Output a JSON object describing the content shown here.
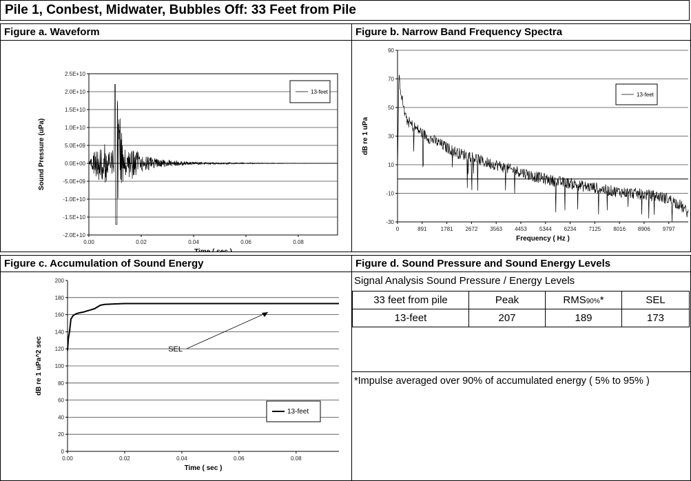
{
  "page": {
    "title": "Pile 1, Conbest, Midwater, Bubbles Off: 33 Feet from Pile"
  },
  "figures": {
    "a": {
      "title": "Figure a. Waveform"
    },
    "b": {
      "title": "Figure b. Narrow Band Frequency Spectra"
    },
    "c": {
      "title": "Figure c. Accumulation of Sound Energy"
    },
    "d": {
      "title": "Figure d. Sound Pressure and Sound Energy Levels"
    }
  },
  "chart_data": [
    {
      "id": "a",
      "type": "line",
      "xlabel": "Time ( sec )",
      "ylabel": "Sound Pressure (uPa)",
      "xlim": [
        0,
        0.095
      ],
      "ylim": [
        -20000000000.0,
        25000000000.0
      ],
      "x_ticks": [
        "0.00",
        "0.02",
        "0.04",
        "0.06",
        "0.08"
      ],
      "y_ticks": [
        "2.5E+10",
        "2.0E+10",
        "1.5E+10",
        "1.0E+10",
        "5.0E+09",
        "0.0E+00",
        "-5.0E+09",
        "-1.0E+10",
        "-1.5E+10",
        "-2.0E+10"
      ],
      "grid": true,
      "legend_position": "top-right",
      "series": [
        {
          "name": "13-feet",
          "color": "#000000",
          "x": [
            0.0,
            0.002,
            0.004,
            0.006,
            0.008,
            0.0095,
            0.0105,
            0.0115,
            0.013,
            0.015,
            0.017,
            0.02,
            0.025,
            0.03,
            0.035,
            0.04,
            0.05,
            0.06,
            0.07,
            0.08,
            0.09,
            0.095
          ],
          "y": [
            0.0,
            4000000000.0,
            -5000000000.0,
            6000000000.0,
            3000000000.0,
            -4000000000.0,
            22000000000.0,
            -17000000000.0,
            5000000000.0,
            -4000000000.0,
            4500000000.0,
            2500000000.0,
            1500000000.0,
            1000000000.0,
            600000000.0,
            400000000.0,
            250000000.0,
            150000000.0,
            100000000.0,
            50000000.0,
            30000000.0,
            0.0
          ]
        }
      ]
    },
    {
      "id": "b",
      "type": "line",
      "xlabel": "Frequency ( Hz )",
      "ylabel": "dB re 1 uPa",
      "xlim": [
        0,
        10500
      ],
      "ylim": [
        -30,
        90
      ],
      "x_ticks": [
        "0",
        "891",
        "1781",
        "2672",
        "3563",
        "4453",
        "5344",
        "6234",
        "7125",
        "8016",
        "8906",
        "9797"
      ],
      "y_ticks": [
        "90",
        "70",
        "50",
        "30",
        "10",
        "-10",
        "-30"
      ],
      "grid": true,
      "legend_position": "top-right",
      "series": [
        {
          "name": "13-feet",
          "color": "#000000",
          "x": [
            0,
            50,
            150,
            300,
            500,
            891,
            1200,
            1500,
            1781,
            2200,
            2672,
            3100,
            3563,
            4000,
            4453,
            4900,
            5344,
            5800,
            6234,
            6700,
            7125,
            7600,
            8016,
            8500,
            8906,
            9400,
            9797,
            10200,
            10500
          ],
          "y": [
            2,
            72,
            58,
            42,
            38,
            32,
            28,
            25,
            22,
            18,
            16,
            12,
            10,
            7,
            5,
            2,
            0,
            -2,
            -3,
            -5,
            -6,
            -8,
            -9,
            -10,
            -11,
            -12,
            -14,
            -18,
            -24
          ]
        }
      ]
    },
    {
      "id": "c",
      "type": "line",
      "xlabel": "Time ( sec )",
      "ylabel": "dB re 1 uPa^2 sec",
      "xlim": [
        0,
        0.095
      ],
      "ylim": [
        0,
        200
      ],
      "x_ticks": [
        "0.00",
        "0.02",
        "0.04",
        "0.06",
        "0.08"
      ],
      "y_ticks": [
        "200",
        "180",
        "160",
        "140",
        "120",
        "100",
        "80",
        "60",
        "40",
        "20",
        "0"
      ],
      "grid": true,
      "legend_position": "bottom-right",
      "annotation": "SEL",
      "series": [
        {
          "name": "13-feet",
          "color": "#000000",
          "x": [
            0.0,
            0.0003,
            0.0007,
            0.0012,
            0.002,
            0.003,
            0.004,
            0.0055,
            0.0075,
            0.0095,
            0.0105,
            0.0115,
            0.013,
            0.016,
            0.02,
            0.03,
            0.04,
            0.06,
            0.08,
            0.095
          ],
          "y": [
            118,
            132,
            140,
            155,
            159,
            161,
            162,
            163,
            165,
            167,
            169,
            171,
            172,
            172.5,
            173,
            173,
            173,
            173,
            173,
            173
          ]
        }
      ]
    }
  ],
  "levels_table": {
    "heading": "Signal Analysis Sound Pressure / Energy Levels",
    "columns": [
      "33 feet from pile",
      "Peak",
      "RMS90%*",
      "SEL"
    ],
    "rows": [
      [
        "13-feet",
        "207",
        "189",
        "173"
      ]
    ],
    "footnote": "*Impulse averaged over 90% of accumulated energy ( 5% to 95% )"
  }
}
